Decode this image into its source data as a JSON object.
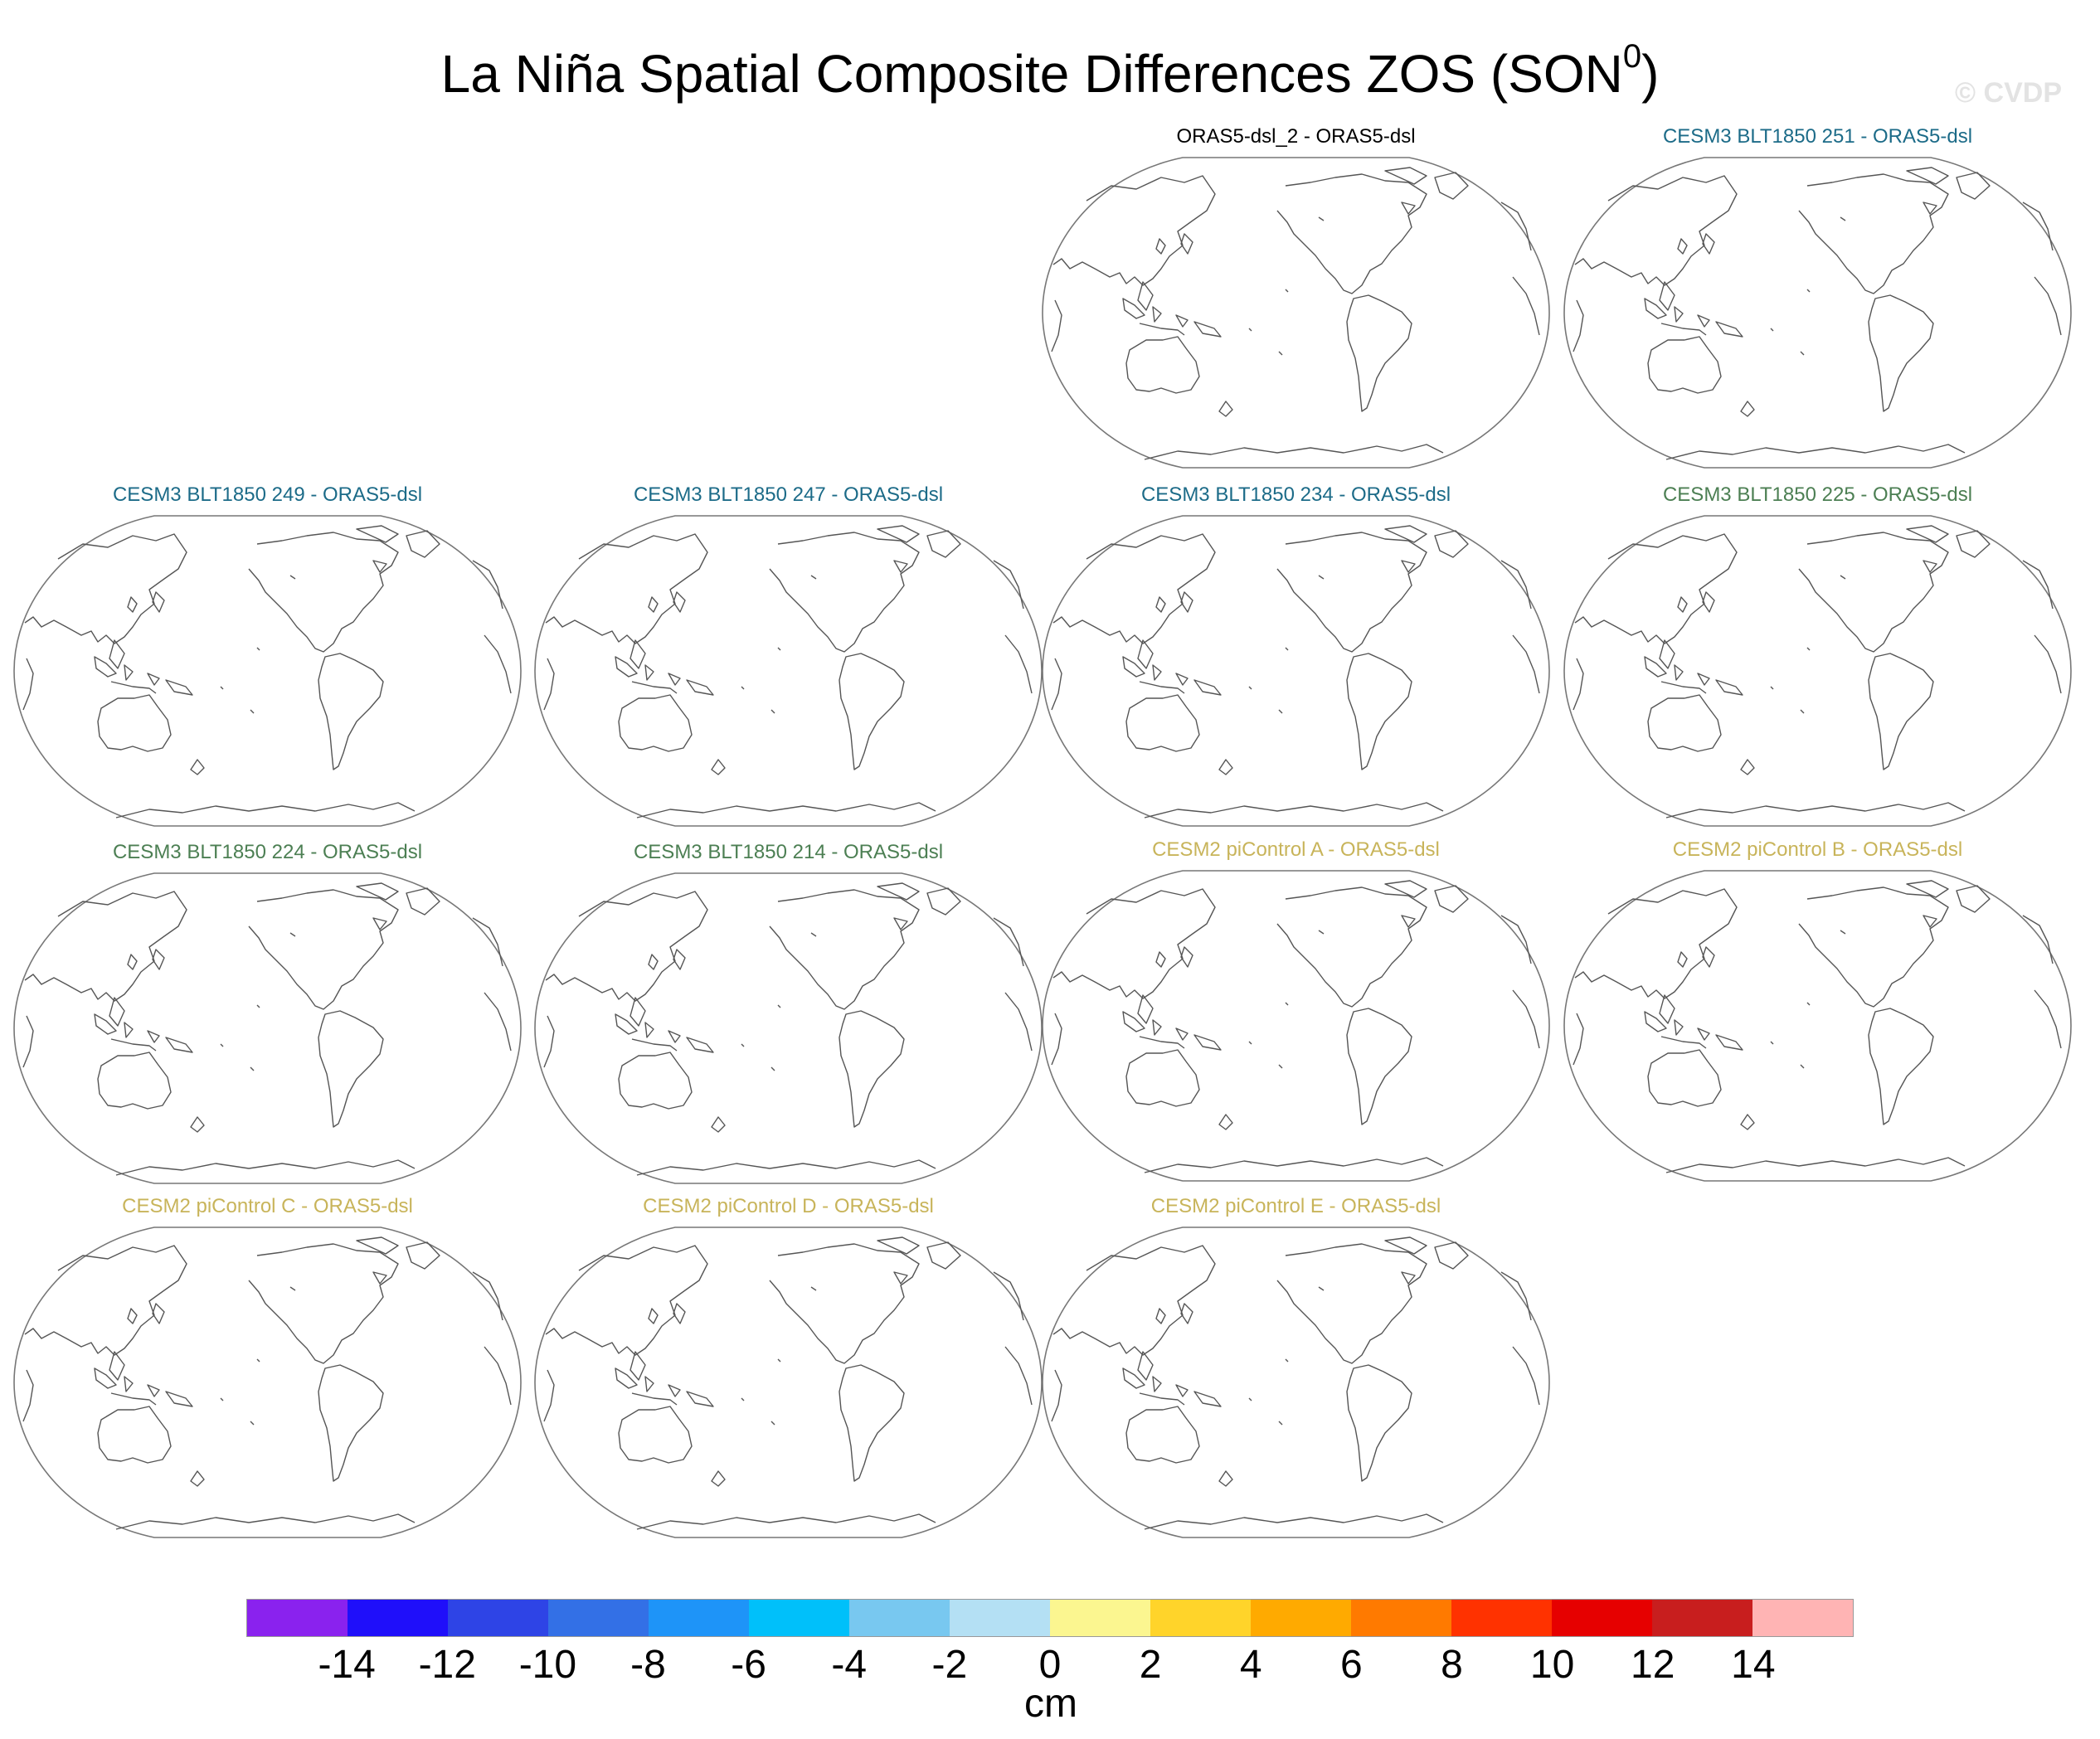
{
  "title": {
    "text": "La Niña Spatial Composite Differences ZOS (SON",
    "superscript": "0",
    "close": ")"
  },
  "watermark": "© CVDP",
  "panels": [
    {
      "label": "ORAS5-dsl_2 - ORAS5-dsl",
      "color": "#000000"
    },
    {
      "label": "CESM3 BLT1850 251 - ORAS5-dsl",
      "color": "#1c6b88"
    },
    {
      "label": "CESM3 BLT1850 249 - ORAS5-dsl",
      "color": "#1c6b88"
    },
    {
      "label": "CESM3 BLT1850 247 - ORAS5-dsl",
      "color": "#1c6b88"
    },
    {
      "label": "CESM3 BLT1850 234 - ORAS5-dsl",
      "color": "#1c6b88"
    },
    {
      "label": "CESM3 BLT1850 225 - ORAS5-dsl",
      "color": "#4c7f53"
    },
    {
      "label": "CESM3 BLT1850 224 - ORAS5-dsl",
      "color": "#4c7f53"
    },
    {
      "label": "CESM3 BLT1850 214 - ORAS5-dsl",
      "color": "#4c7f53"
    },
    {
      "label": "CESM2 piControl A - ORAS5-dsl",
      "color": "#c8b45a"
    },
    {
      "label": "CESM2 piControl B - ORAS5-dsl",
      "color": "#c8b45a"
    },
    {
      "label": "CESM2 piControl C - ORAS5-dsl",
      "color": "#c8b45a"
    },
    {
      "label": "CESM2 piControl D - ORAS5-dsl",
      "color": "#c8b45a"
    },
    {
      "label": "CESM2 piControl E - ORAS5-dsl",
      "color": "#c8b45a"
    }
  ],
  "colorbar": {
    "colors": [
      "#8a22ee",
      "#1f0ffa",
      "#2e44e6",
      "#3370e6",
      "#1e94f8",
      "#00c0fa",
      "#78c8f0",
      "#b4e0f4",
      "#fbf690",
      "#ffd42a",
      "#ffaa00",
      "#ff7a00",
      "#ff3200",
      "#e60000",
      "#c81e1e",
      "#ffb4b4"
    ],
    "ticks": [
      "-14",
      "-12",
      "-10",
      "-8",
      "-6",
      "-4",
      "-2",
      "0",
      "2",
      "4",
      "6",
      "8",
      "10",
      "12",
      "14"
    ],
    "units": "cm"
  }
}
